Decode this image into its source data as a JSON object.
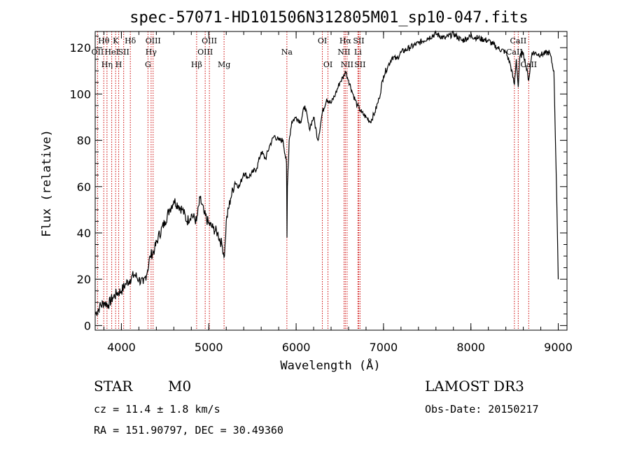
{
  "chart_data": {
    "type": "line",
    "title": "spec-57071-HD101506N312805M01_sp10-047.fits",
    "xlabel": "Wavelength (Å)",
    "ylabel": "Flux (relative)",
    "xlim": [
      3700,
      9100
    ],
    "ylim": [
      -2,
      127
    ],
    "xticks": [
      4000,
      5000,
      6000,
      7000,
      8000,
      9000
    ],
    "yticks": [
      0,
      20,
      40,
      60,
      80,
      100,
      120
    ],
    "grid": false,
    "series": [
      {
        "x": [
          3700,
          3750,
          3800,
          3850,
          3900,
          3950,
          4000,
          4050,
          4100,
          4150,
          4200,
          4250,
          4300,
          4330,
          4380,
          4420,
          4500,
          4550,
          4600,
          4650,
          4700,
          4750,
          4800,
          4860,
          4900,
          4950,
          5000,
          5050,
          5100,
          5150,
          5180,
          5200,
          5250,
          5300,
          5350,
          5400,
          5450,
          5500,
          5550,
          5600,
          5650,
          5700,
          5750,
          5800,
          5850,
          5890,
          5895,
          5900,
          5920,
          5950,
          6000,
          6050,
          6100,
          6150,
          6200,
          6250,
          6300,
          6350,
          6400,
          6450,
          6500,
          6550,
          6563,
          6600,
          6650,
          6700,
          6750,
          6800,
          6850,
          6900,
          6950,
          7000,
          7050,
          7100,
          7150,
          7200,
          7300,
          7400,
          7500,
          7600,
          7700,
          7800,
          7900,
          8000,
          8100,
          8200,
          8300,
          8400,
          8450,
          8498,
          8520,
          8542,
          8560,
          8600,
          8662,
          8700,
          8800,
          8900,
          8950,
          8980,
          9000
        ],
        "y": [
          5,
          8,
          10,
          9,
          12,
          14,
          15,
          18,
          20,
          22,
          20,
          18,
          24,
          30,
          33,
          38,
          45,
          50,
          54,
          52,
          50,
          45,
          48,
          45,
          55,
          48,
          44,
          42,
          40,
          35,
          30,
          45,
          55,
          62,
          60,
          66,
          64,
          66,
          68,
          75,
          72,
          78,
          82,
          80,
          80,
          70,
          38,
          60,
          80,
          88,
          90,
          88,
          95,
          85,
          90,
          80,
          92,
          98,
          96,
          100,
          105,
          108,
          110,
          106,
          100,
          95,
          92,
          90,
          88,
          92,
          98,
          108,
          112,
          116,
          115,
          118,
          120,
          122,
          124,
          126,
          124,
          126,
          123,
          125,
          124,
          123,
          120,
          118,
          113,
          104,
          115,
          103,
          116,
          118,
          106,
          118,
          117,
          118,
          110,
          60,
          20
        ]
      }
    ],
    "spectral_lines": [
      {
        "w": 3727,
        "label": "OII",
        "row": 1
      },
      {
        "w": 3798,
        "label": "Hθ",
        "row": 0
      },
      {
        "w": 3835,
        "label": "Hη",
        "row": 2
      },
      {
        "w": 3889,
        "label": "HeI",
        "row": 1
      },
      {
        "w": 3934,
        "label": "K",
        "row": 0
      },
      {
        "w": 3969,
        "label": "H",
        "row": 2
      },
      {
        "w": 4026,
        "label": "SII",
        "row": 1
      },
      {
        "w": 4102,
        "label": "Hδ",
        "row": 0
      },
      {
        "w": 4304,
        "label": "G",
        "row": 2
      },
      {
        "w": 4340,
        "label": "Hγ",
        "row": 1
      },
      {
        "w": 4363,
        "label": "OIII",
        "row": 0
      },
      {
        "w": 4861,
        "label": "Hβ",
        "row": 2
      },
      {
        "w": 4959,
        "label": "OIII",
        "row": 1
      },
      {
        "w": 5007,
        "label": "OIII",
        "row": 0
      },
      {
        "w": 5175,
        "label": "Mg",
        "row": 2
      },
      {
        "w": 5894,
        "label": "Na",
        "row": 1
      },
      {
        "w": 6300,
        "label": "OI",
        "row": 0
      },
      {
        "w": 6364,
        "label": "OI",
        "row": 2
      },
      {
        "w": 6548,
        "label": "NII",
        "row": 1
      },
      {
        "w": 6563,
        "label": "Hα",
        "row": 0
      },
      {
        "w": 6583,
        "label": "NII",
        "row": 2
      },
      {
        "w": 6707,
        "label": "Li",
        "row": 1
      },
      {
        "w": 6716,
        "label": "SII",
        "row": 0
      },
      {
        "w": 6731,
        "label": "SII",
        "row": 2
      },
      {
        "w": 8498,
        "label": "CaII",
        "row": 1
      },
      {
        "w": 8542,
        "label": "CaII",
        "row": 0
      },
      {
        "w": 8662,
        "label": "CaII",
        "row": 2
      }
    ]
  },
  "info": {
    "class_type": "STAR",
    "subclass": "M0",
    "survey": "LAMOST DR3",
    "redshift": "cz = 11.4 ± 1.8 km/s",
    "obs_date": "Obs-Date: 20150217",
    "coords": "RA = 151.90797, DEC =  30.49360"
  },
  "colors": {
    "spectrum": "#000000",
    "line_marker": "#cc0000"
  }
}
